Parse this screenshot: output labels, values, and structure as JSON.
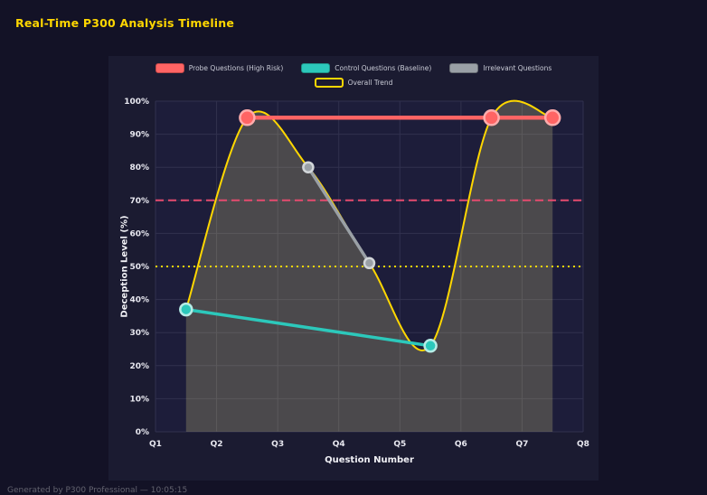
{
  "page": {
    "title": "Real-Time P300 Analysis Timeline",
    "footer": "Generated by P300 Professional — 10:05:15"
  },
  "colors": {
    "page_bg": "#131226",
    "figure_bg": "#1b1b31",
    "plot_bg": "#1d1d3a",
    "grid": "#31314e",
    "tick_text": "#e8e8f0",
    "title_text": "#ffd700",
    "axis_label_text": "#f0f0f5",
    "legend_text": "#c9cbd6",
    "footer_text": "#63636f"
  },
  "chart_data": {
    "type": "line",
    "title": "Real-Time P300 Analysis Timeline",
    "xlabel": "Question Number",
    "ylabel": "Deception Level (%)",
    "x_ticks": [
      "Q1",
      "Q2",
      "Q3",
      "Q4",
      "Q5",
      "Q6",
      "Q7",
      "Q8"
    ],
    "x_range": [
      1,
      8
    ],
    "y_ticks": [
      "0%",
      "10%",
      "20%",
      "30%",
      "40%",
      "50%",
      "60%",
      "70%",
      "80%",
      "90%",
      "100%"
    ],
    "y_range": [
      0,
      100
    ],
    "grid": true,
    "legend_position": "top-center",
    "legend_rows": [
      [
        0,
        1,
        2
      ],
      [
        3
      ]
    ],
    "series": [
      {
        "name": "Probe Questions (High Risk)",
        "x": [
          2.5,
          6.5,
          7.5
        ],
        "y": [
          95,
          95,
          95
        ],
        "color": "#ff6464",
        "edge": "#c24848",
        "ring": "#ffacac",
        "line_width": 4.5,
        "marker_size": 8
      },
      {
        "name": "Control Questions (Baseline)",
        "x": [
          1.5,
          5.5
        ],
        "y": [
          37,
          26
        ],
        "color": "#2cc8bb",
        "edge": "#1f9188",
        "ring": "#b5ece6",
        "line_width": 3.5,
        "marker_size": 6.5
      },
      {
        "name": "Irrelevant Questions",
        "x": [
          3.5,
          4.5
        ],
        "y": [
          80,
          51
        ],
        "color": "#9aa0a6",
        "edge": "#6b7076",
        "ring": "#d2d6d9",
        "line_width": 3.5,
        "marker_size": 5.5
      },
      {
        "name": "Overall Trend",
        "x": [
          1.5,
          2.5,
          3.5,
          4.5,
          5.5,
          6.5,
          7.5
        ],
        "y": [
          37,
          95,
          80,
          51,
          26,
          95,
          95
        ],
        "color": "#ffd700",
        "edge": "#d4b200",
        "line_width": 2,
        "marker_size": 0,
        "smooth": true,
        "fill": "rgba(240,230,140,0.22)",
        "hollow_swatch": true
      }
    ],
    "thresholds": [
      {
        "value": 70,
        "color": "#e54b6e",
        "dash": "9 5",
        "width": 2
      },
      {
        "value": 50,
        "color": "#ffd700",
        "dash": "2 4",
        "width": 2
      }
    ]
  }
}
